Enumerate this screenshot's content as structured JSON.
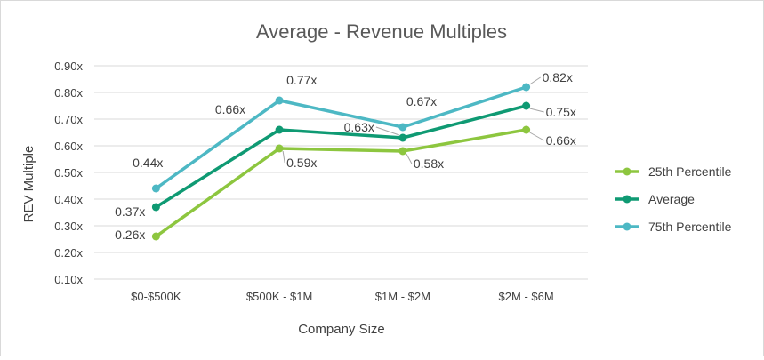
{
  "chart_data": {
    "type": "line",
    "title": "Average - Revenue Multiples",
    "xlabel": "Company Size",
    "ylabel": "REV Multiple",
    "categories": [
      "$0-$500K",
      "$500K - $1M",
      "$1M - $2M",
      "$2M - $6M"
    ],
    "ylim": [
      0.1,
      0.9
    ],
    "yticks": [
      0.9,
      0.8,
      0.7,
      0.6,
      0.5,
      0.4,
      0.3,
      0.2,
      0.1
    ],
    "ytick_labels": [
      "0.90x",
      "0.80x",
      "0.70x",
      "0.60x",
      "0.50x",
      "0.40x",
      "0.30x",
      "0.20x",
      "0.10x"
    ],
    "grid": true,
    "legend_position": "right",
    "series": [
      {
        "name": "25th Percentile",
        "color": "#8dc63f",
        "values": [
          0.26,
          0.59,
          0.58,
          0.66
        ],
        "labels": [
          "0.26x",
          "0.59x",
          "0.58x",
          "0.66x"
        ]
      },
      {
        "name": "Average",
        "color": "#0f9a73",
        "values": [
          0.37,
          0.66,
          0.63,
          0.75
        ],
        "labels": [
          "0.37x",
          "0.66x",
          "0.63x",
          "0.75x"
        ]
      },
      {
        "name": "75th Percentile",
        "color": "#4db8c4",
        "values": [
          0.44,
          0.77,
          0.67,
          0.82
        ],
        "labels": [
          "0.44x",
          "0.77x",
          "0.67x",
          "0.82x"
        ]
      }
    ]
  }
}
